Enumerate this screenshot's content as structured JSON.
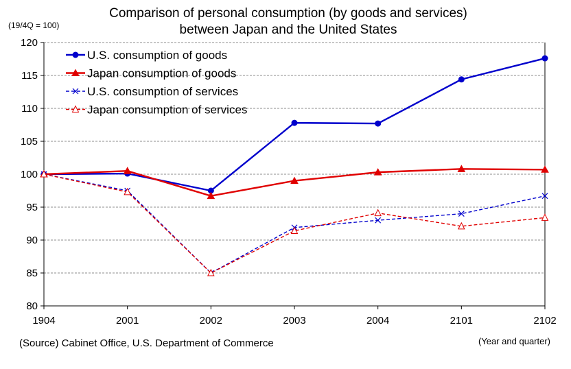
{
  "chart_data": {
    "type": "line",
    "title_lines": [
      "Comparison of personal consumption (by goods and services)",
      "between Japan and the United States"
    ],
    "ylabel": "(19/4Q = 100)",
    "xlabel": "(Year and quarter)",
    "source": "(Source) Cabinet Office, U.S. Department of Commerce",
    "categories": [
      "1904",
      "2001",
      "2002",
      "2003",
      "2004",
      "2101",
      "2102"
    ],
    "ylim": [
      80,
      120
    ],
    "yticks": [
      80,
      85,
      90,
      95,
      100,
      105,
      110,
      115,
      120
    ],
    "grid": true,
    "legend_position": "top-left",
    "series": [
      {
        "name": "U.S. consumption of goods",
        "values": [
          100.0,
          100.1,
          97.5,
          107.8,
          107.7,
          114.4,
          117.6
        ],
        "color": "#0000cc",
        "style": "solid",
        "marker": "circle"
      },
      {
        "name": "Japan consumption of goods",
        "values": [
          100.0,
          100.5,
          96.7,
          99.0,
          100.3,
          100.8,
          100.7
        ],
        "color": "#e00000",
        "style": "solid",
        "marker": "triangle"
      },
      {
        "name": "U.S. consumption of services",
        "values": [
          100.0,
          97.5,
          85.0,
          91.9,
          93.0,
          94.0,
          96.7
        ],
        "color": "#0000cc",
        "style": "dashed",
        "marker": "x"
      },
      {
        "name": "Japan consumption of services",
        "values": [
          100.0,
          97.3,
          85.0,
          91.4,
          94.1,
          92.1,
          93.4
        ],
        "color": "#e00000",
        "style": "dashed",
        "marker": "open-triangle"
      }
    ]
  }
}
